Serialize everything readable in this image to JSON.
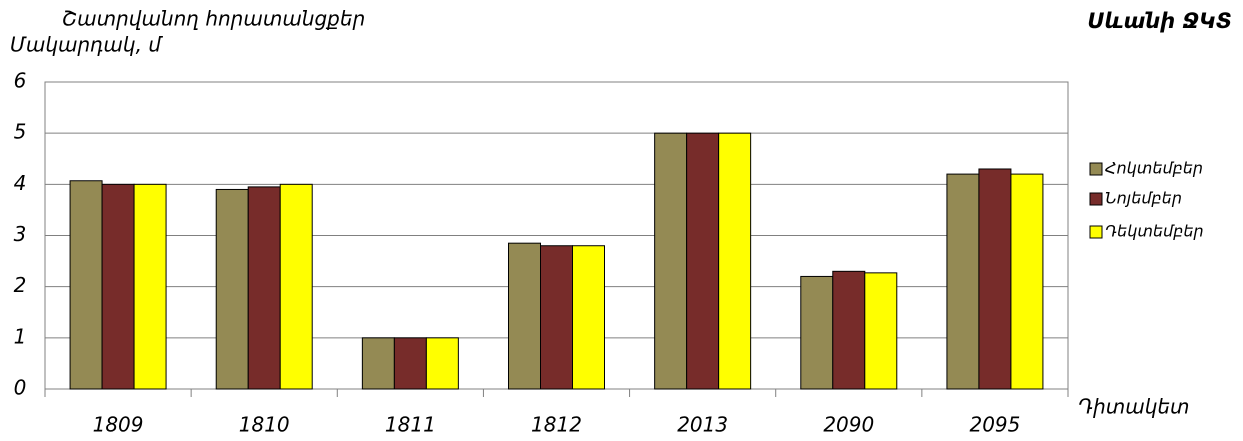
{
  "chart_data": {
    "type": "bar",
    "title": "Սևանի ՋԿՏ",
    "subtitle": "Շատրվանող հորատանցքեր",
    "y_label": "Մակարդակ, մ",
    "x_label": "Դիտակետ",
    "categories": [
      "1809",
      "1810",
      "1811",
      "1812",
      "2013",
      "2090",
      "2095"
    ],
    "series": [
      {
        "name": "Հոկտեմբեր",
        "color": "#948a54",
        "values": [
          4.07,
          3.9,
          1,
          2.85,
          5,
          2.2,
          4.2
        ]
      },
      {
        "name": "Նոյեմբեր",
        "color": "#772c2a",
        "values": [
          4,
          3.95,
          1,
          2.8,
          5,
          2.3,
          4.3
        ]
      },
      {
        "name": "Դեկտեմբեր",
        "color": "#ffff00",
        "values": [
          4,
          4,
          1,
          2.8,
          5,
          2.27,
          4.2
        ]
      }
    ],
    "ylim": [
      0,
      6
    ],
    "yticks": [
      0,
      1,
      2,
      3,
      4,
      5,
      6
    ],
    "grid": true,
    "legend": "right"
  }
}
